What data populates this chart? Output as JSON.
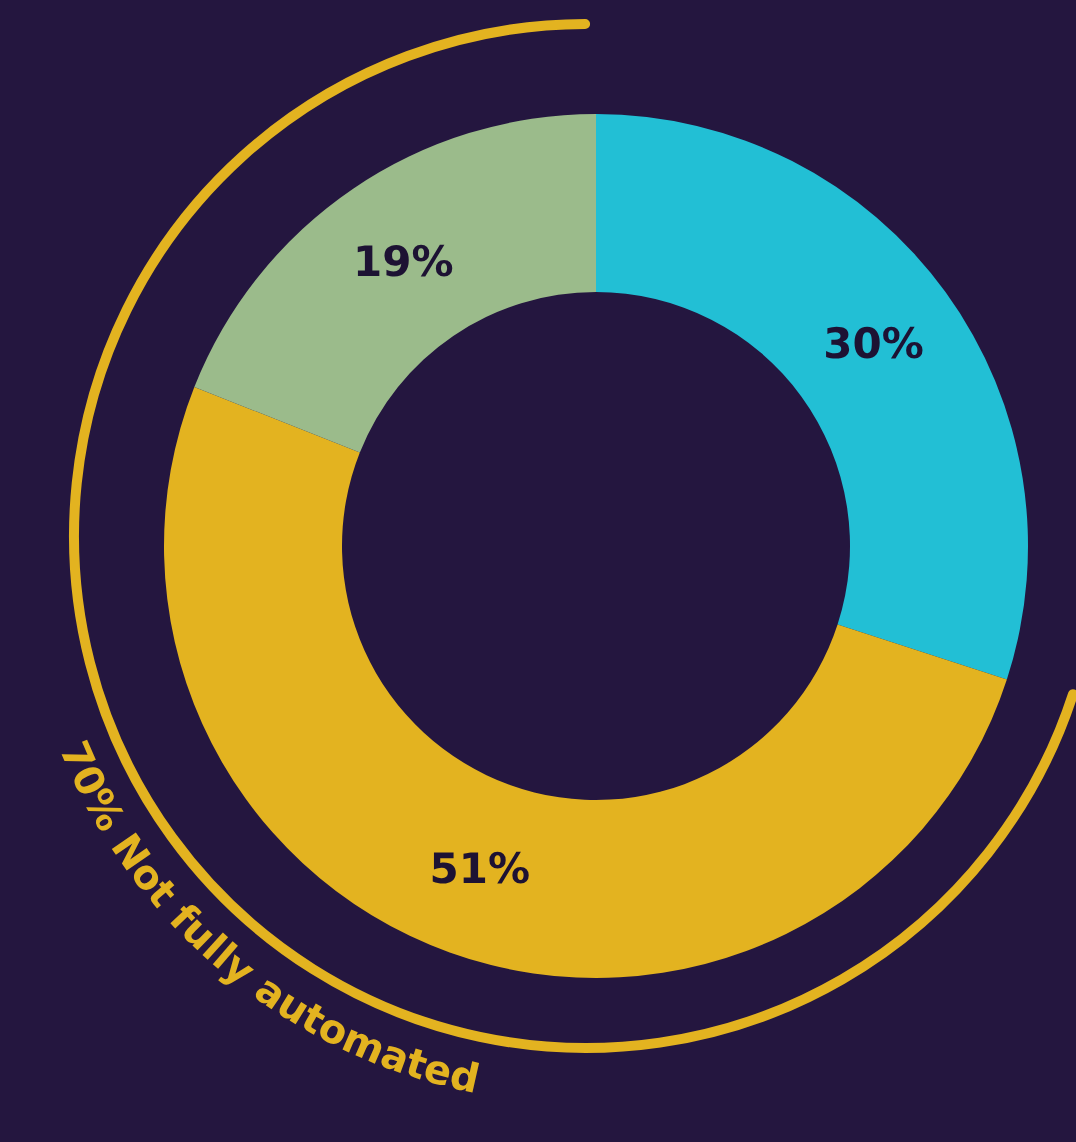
{
  "chart_data": {
    "type": "donut",
    "categories": [
      null,
      null,
      null
    ],
    "values": [
      30,
      51,
      19
    ],
    "colors": [
      "#22bfd5",
      "#e3b320",
      "#9bbb8b"
    ],
    "value_labels": [
      "30%",
      "51%",
      "19%"
    ],
    "annotations": [
      "70% Not fully automated"
    ]
  }
}
